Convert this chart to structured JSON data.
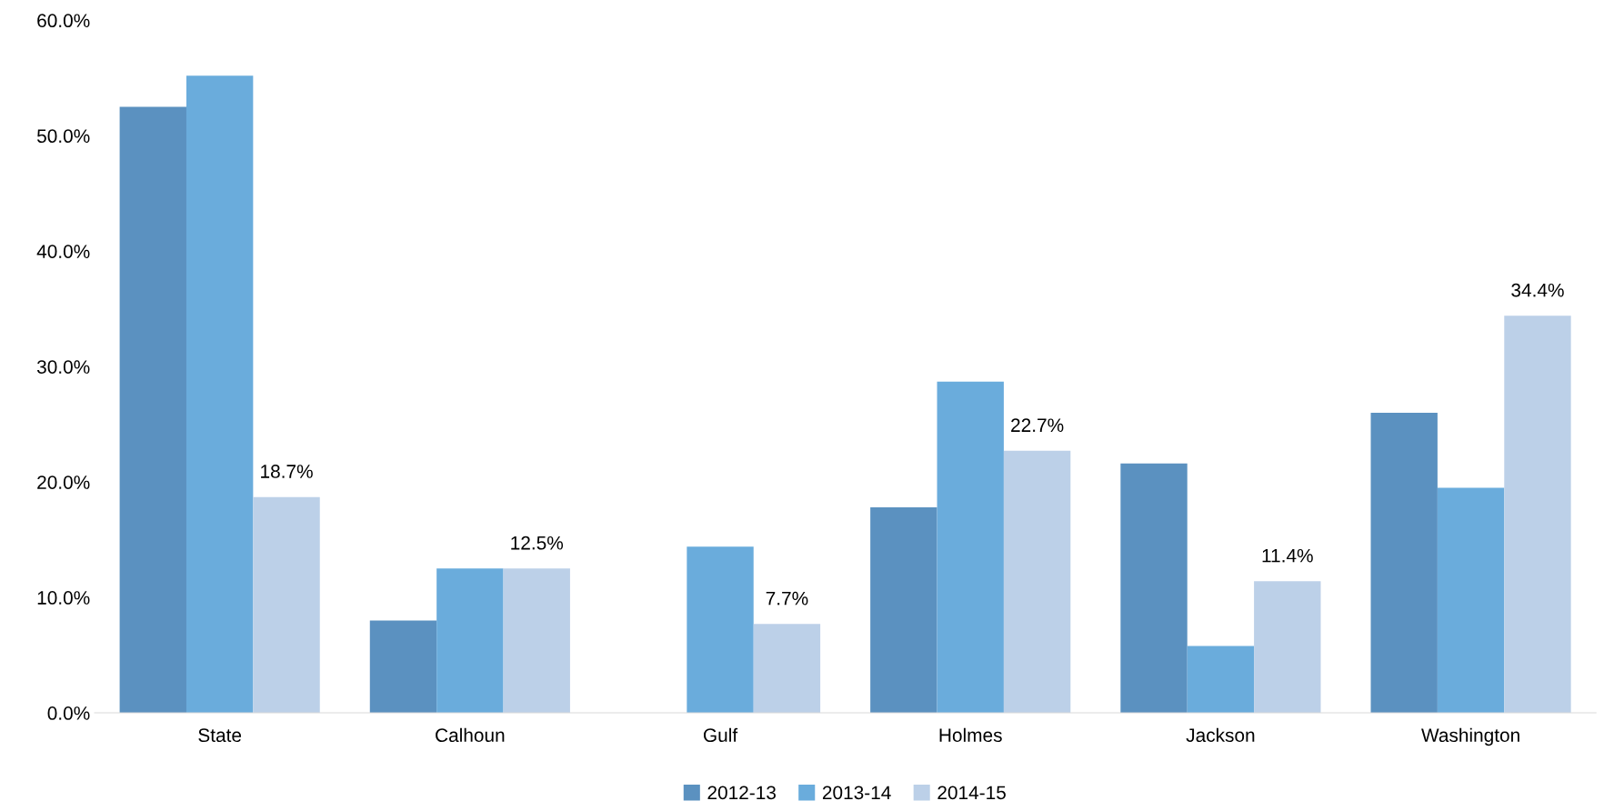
{
  "chart_data": {
    "type": "bar",
    "categories": [
      "State",
      "Calhoun",
      "Gulf",
      "Holmes",
      "Jackson",
      "Washington"
    ],
    "series": [
      {
        "name": "2012-13",
        "color": "#5b91c0",
        "values": [
          52.5,
          8.0,
          null,
          17.8,
          21.6,
          26.0
        ]
      },
      {
        "name": "2013-14",
        "color": "#6aacdc",
        "values": [
          55.2,
          12.5,
          14.4,
          28.7,
          5.8,
          19.5
        ]
      },
      {
        "name": "2014-15",
        "color": "#bcd0e8",
        "values": [
          18.7,
          12.5,
          7.7,
          22.7,
          11.4,
          34.4
        ],
        "value_labels": [
          "18.7%",
          "12.5%",
          "7.7%",
          "22.7%",
          "11.4%",
          "34.4%"
        ]
      }
    ],
    "ylim": [
      0,
      60
    ],
    "yticks": [
      {
        "value": 0,
        "label": "0.0%"
      },
      {
        "value": 10,
        "label": "10.0%"
      },
      {
        "value": 20,
        "label": "20.0%"
      },
      {
        "value": 30,
        "label": "30.0%"
      },
      {
        "value": 40,
        "label": "40.0%"
      },
      {
        "value": 50,
        "label": "50.0%"
      },
      {
        "value": 60,
        "label": "60.0%"
      }
    ],
    "legend": "bottom"
  }
}
